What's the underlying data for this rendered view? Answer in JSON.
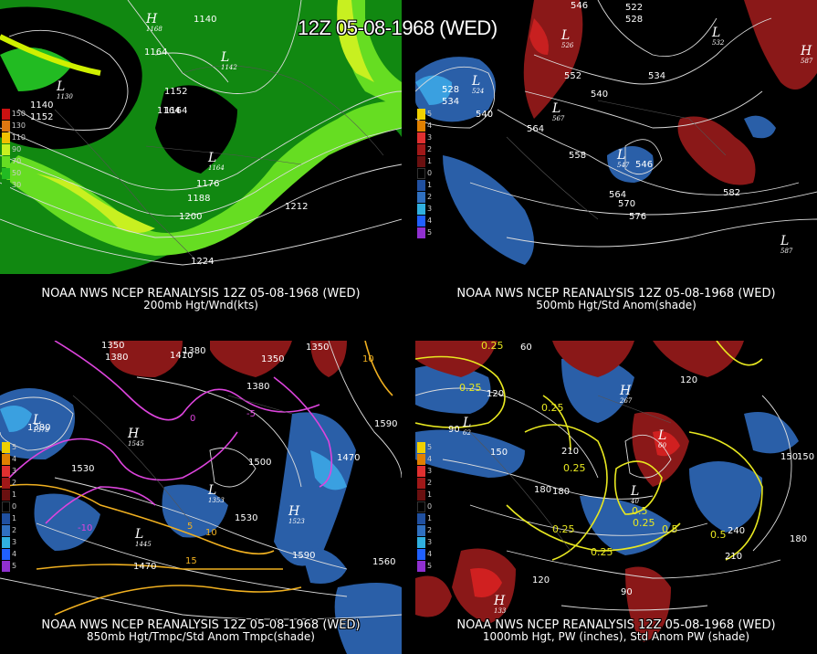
{
  "title": "12Z 05-08-1968 (WED)",
  "panels": [
    {
      "caption1": "NOAA NWS NCEP REANALYSIS 12Z 05-08-1968 (WED)",
      "caption2": "200mb Hgt/Wnd(kts)",
      "legend": [
        {
          "color": "#cc1111",
          "label": "150"
        },
        {
          "color": "#dd7711",
          "label": "130"
        },
        {
          "color": "#f0c000",
          "label": "110"
        },
        {
          "color": "#c8f020",
          "label": "90"
        },
        {
          "color": "#66dd22",
          "label": "70"
        },
        {
          "color": "#22bb22",
          "label": "50"
        },
        {
          "color": "#118811",
          "label": "30"
        }
      ],
      "contours": [
        "1140",
        "1164",
        "1140",
        "1152",
        "1164",
        "1152",
        "1164",
        "1176",
        "1188",
        "1200",
        "1212",
        "1224"
      ],
      "centers": [
        {
          "type": "H",
          "value": "1168"
        },
        {
          "type": "L",
          "value": "1142"
        },
        {
          "type": "L",
          "value": "1130"
        },
        {
          "type": "L",
          "value": "1164"
        }
      ]
    },
    {
      "caption1": "NOAA NWS NCEP REANALYSIS 12Z 05-08-1968 (WED)",
      "caption2": "500mb Hgt/Std Anom(shade)",
      "legend": [
        {
          "color": "#f0d000",
          "label": "5"
        },
        {
          "color": "#e08000",
          "label": "4"
        },
        {
          "color": "#e03030",
          "label": "3"
        },
        {
          "color": "#a01818",
          "label": "2"
        },
        {
          "color": "#6a1010",
          "label": "1"
        },
        {
          "color": "#000000",
          "label": "0"
        },
        {
          "color": "#2050a0",
          "label": "1"
        },
        {
          "color": "#3070c0",
          "label": "2"
        },
        {
          "color": "#30b0e0",
          "label": "3"
        },
        {
          "color": "#2060ff",
          "label": "4"
        },
        {
          "color": "#9030d0",
          "label": "5"
        }
      ],
      "contours": [
        "546",
        "522",
        "528",
        "552",
        "528",
        "534",
        "540",
        "540",
        "564",
        "558",
        "534",
        "546",
        "564",
        "570",
        "576",
        "582"
      ],
      "centers": [
        {
          "type": "L",
          "value": "524"
        },
        {
          "type": "L",
          "value": "532"
        },
        {
          "type": "L",
          "value": "547"
        },
        {
          "type": "H",
          "value": "587"
        },
        {
          "type": "L",
          "value": "587"
        },
        {
          "type": "L",
          "value": "567"
        },
        {
          "type": "L",
          "value": "526"
        }
      ]
    },
    {
      "caption1": "NOAA NWS NCEP REANALYSIS 12Z 05-08-1968 (WED)",
      "caption2": "850mb Hgt/Tmpc/Std Anom Tmpc(shade)",
      "legend": [
        {
          "color": "#f0d000",
          "label": "5"
        },
        {
          "color": "#e08000",
          "label": "4"
        },
        {
          "color": "#e03030",
          "label": "3"
        },
        {
          "color": "#a01818",
          "label": "2"
        },
        {
          "color": "#6a1010",
          "label": "1"
        },
        {
          "color": "#000000",
          "label": "0"
        },
        {
          "color": "#2050a0",
          "label": "1"
        },
        {
          "color": "#3070c0",
          "label": "2"
        },
        {
          "color": "#30b0e0",
          "label": "3"
        },
        {
          "color": "#2060ff",
          "label": "4"
        },
        {
          "color": "#9030d0",
          "label": "5"
        }
      ],
      "contours": [
        "1350",
        "1380",
        "1410",
        "1350",
        "1380",
        "1380",
        "1590",
        "1530",
        "1500",
        "1470",
        "1530",
        "1560",
        "1590",
        "1470",
        "1380",
        "1350"
      ],
      "temps": [
        "-10",
        "-5",
        "0",
        "5",
        "10",
        "15",
        "10"
      ],
      "centers": [
        {
          "type": "L",
          "value": "1378"
        },
        {
          "type": "H",
          "value": "1545"
        },
        {
          "type": "L",
          "value": "1445"
        },
        {
          "type": "L",
          "value": "1353"
        },
        {
          "type": "H",
          "value": "1523"
        }
      ]
    },
    {
      "caption1": "NOAA NWS NCEP REANALYSIS 12Z 05-08-1968 (WED)",
      "caption2": "1000mb Hgt, PW (inches), Std Anom PW (shade)",
      "legend": [
        {
          "color": "#f0d000",
          "label": "5"
        },
        {
          "color": "#e08000",
          "label": "4"
        },
        {
          "color": "#e03030",
          "label": "3"
        },
        {
          "color": "#a01818",
          "label": "2"
        },
        {
          "color": "#6a1010",
          "label": "1"
        },
        {
          "color": "#000000",
          "label": "0"
        },
        {
          "color": "#2050a0",
          "label": "1"
        },
        {
          "color": "#3070c0",
          "label": "2"
        },
        {
          "color": "#30b0e0",
          "label": "3"
        },
        {
          "color": "#2060ff",
          "label": "4"
        },
        {
          "color": "#9030d0",
          "label": "5"
        }
      ],
      "contours": [
        "0.25",
        "60",
        "120",
        "90",
        "150",
        "180",
        "210",
        "240",
        "180",
        "150",
        "120",
        "90",
        "120",
        "210",
        "150",
        "180",
        "0.5"
      ],
      "pw": [
        "0.25",
        "0.25",
        "0.25",
        "0.5",
        "0.25",
        "0.25",
        "0.25",
        "0.5"
      ],
      "centers": [
        {
          "type": "L",
          "value": "62"
        },
        {
          "type": "H",
          "value": "267"
        },
        {
          "type": "L",
          "value": "60"
        },
        {
          "type": "H",
          "value": "133"
        },
        {
          "type": "L",
          "value": "40"
        }
      ]
    }
  ]
}
